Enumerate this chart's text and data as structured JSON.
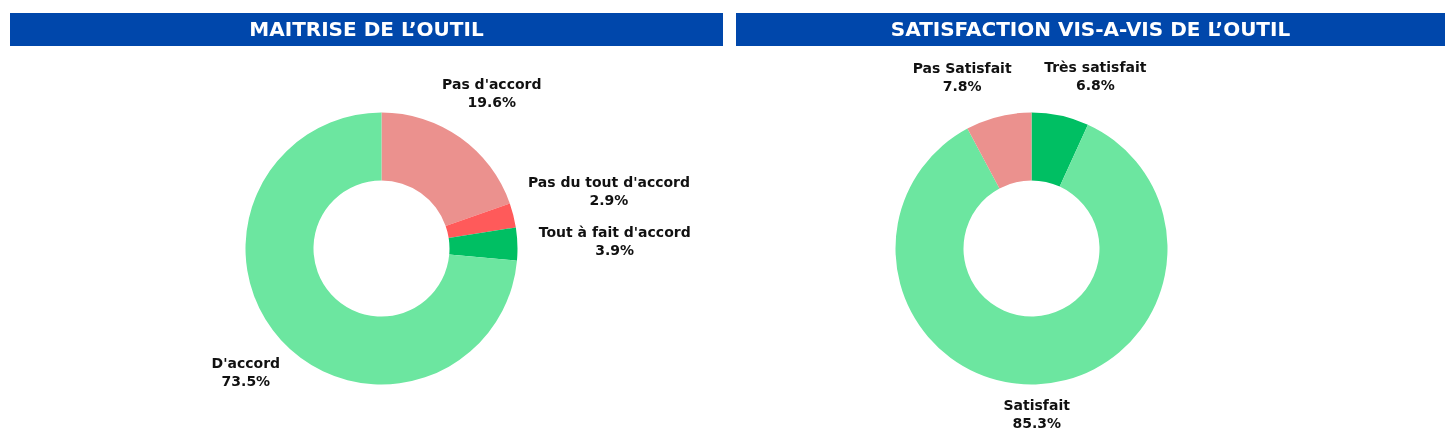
{
  "chart_data": [
    {
      "type": "donut",
      "title": "MAITRISE DE L’OUTIL",
      "categories": [
        "Pas d'accord",
        "Pas du tout d'accord",
        "Tout à fait d'accord",
        "D'accord"
      ],
      "values": [
        19.6,
        2.9,
        3.9,
        73.5
      ],
      "value_labels": [
        "19.6%",
        "2.9%",
        "3.9%",
        "73.5%"
      ],
      "colors": [
        "#eb918e",
        "#ff5a5a",
        "#00bf63",
        "#6ce6a0"
      ]
    },
    {
      "type": "donut",
      "title": "SATISFACTION VIS-A-VIS DE L’OUTIL",
      "categories": [
        "Très satisfait",
        "Satisfait",
        "Pas Satisfait"
      ],
      "values": [
        6.8,
        85.3,
        7.8
      ],
      "value_labels": [
        "6.8%",
        "85.3%",
        "7.8%"
      ],
      "colors": [
        "#00bf63",
        "#6ce6a0",
        "#eb918e"
      ]
    }
  ]
}
